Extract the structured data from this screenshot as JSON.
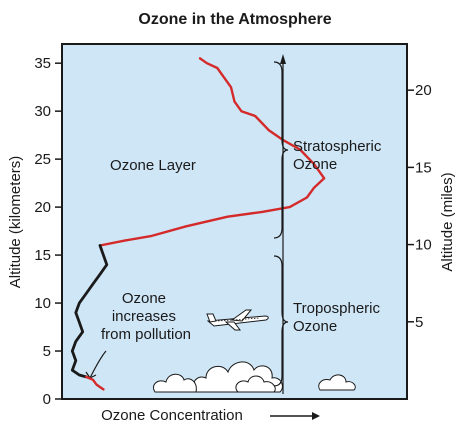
{
  "chart_data": {
    "type": "line",
    "title": "Ozone in the Atmosphere",
    "xlabel": "Ozone Concentration",
    "ylabel_left": "Altitude (kilometers)",
    "ylabel_right": "Altitude (miles)",
    "ylim_km": [
      0,
      37
    ],
    "yticks_km": [
      "0",
      "5",
      "10",
      "15",
      "20",
      "25",
      "30",
      "35"
    ],
    "yticks_miles": [
      "5",
      "10",
      "15",
      "20"
    ],
    "ytick_values_miles": [
      5,
      10,
      15,
      20
    ],
    "xlim": [
      0,
      100
    ],
    "background_color": "#cfe6f7",
    "series": [
      {
        "color": "#d42a2a",
        "x": [
          40,
          42,
          45,
          47,
          49,
          50,
          52,
          56,
          60,
          64,
          69,
          73,
          76,
          73,
          71,
          66,
          58,
          48,
          36,
          26,
          18,
          11
        ],
        "y": [
          35.5,
          35,
          34.5,
          33.5,
          32.5,
          31,
          30,
          29.5,
          28,
          27,
          26,
          24.5,
          23,
          22,
          21,
          20,
          19.5,
          19,
          18,
          17,
          16.5,
          16
        ]
      },
      {
        "color": "#1a1a1a",
        "x": [
          11,
          12,
          13,
          11,
          9,
          7,
          5,
          4,
          5,
          6,
          4,
          3,
          4,
          3,
          5,
          7
        ],
        "y": [
          16,
          15,
          14,
          13,
          12,
          11,
          10,
          9,
          8,
          7,
          6,
          5,
          4,
          3,
          2.5,
          2.3
        ]
      },
      {
        "color": "#d42a2a",
        "x": [
          7,
          9,
          10,
          12
        ],
        "y": [
          2.3,
          2.0,
          1.5,
          1.0
        ]
      }
    ],
    "annotations": {
      "ozone_layer": "Ozone Layer",
      "ozone_pollution": [
        "Ozone",
        "increases",
        "from pollution"
      ],
      "stratospheric": [
        "Stratospheric",
        "Ozone"
      ],
      "tropospheric": [
        "Tropospheric",
        "Ozone"
      ]
    }
  }
}
